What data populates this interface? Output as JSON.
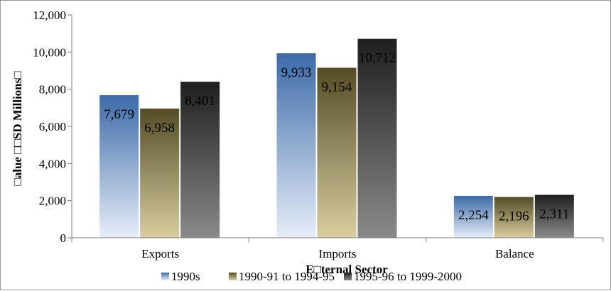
{
  "chart_data": {
    "type": "bar",
    "title": "",
    "categories": [
      "Exports",
      "Imports",
      "Balance"
    ],
    "series": [
      {
        "name": "1990s",
        "values": [
          7679,
          9933,
          2254
        ],
        "value_labels": [
          "7,679",
          "9,933",
          "2,254"
        ],
        "color": "#4a78b4"
      },
      {
        "name": "1990-91 to 1994-95",
        "values": [
          6958,
          9154,
          2196
        ],
        "value_labels": [
          "6,958",
          "9,154",
          "2,196"
        ],
        "color": "#6b6236"
      },
      {
        "name": "1995-96 to 1999-2000",
        "values": [
          8401,
          10712,
          2311
        ],
        "value_labels": [
          "8,401",
          "10,712",
          "2,311"
        ],
        "color": "#3a3a3a"
      }
    ],
    "xlabel": "E□ternal Sector",
    "ylabel": "□alue □□SD Millions□",
    "ylim": [
      0,
      12000
    ],
    "yticks": [
      0,
      2000,
      4000,
      6000,
      8000,
      10000,
      12000
    ],
    "ytick_labels": [
      "0",
      "2,000",
      "4,000",
      "6,000",
      "8,000",
      "10,000",
      "12,000"
    ],
    "grid": false,
    "legend_position": "bottom"
  }
}
